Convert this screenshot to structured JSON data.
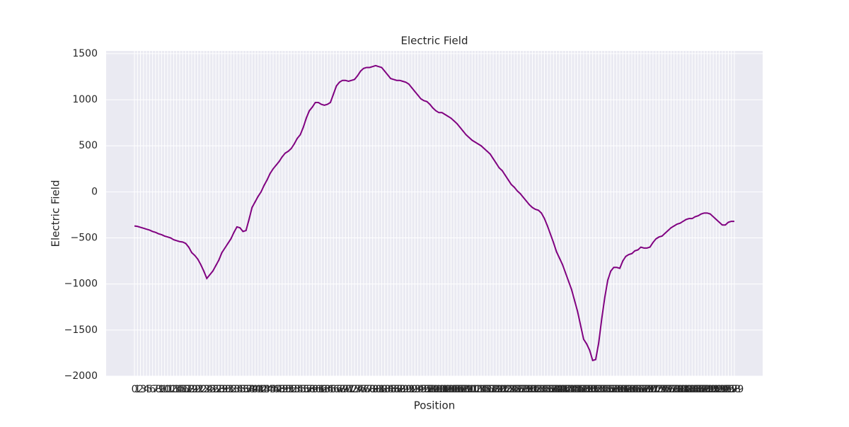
{
  "chart_data": {
    "type": "line",
    "title": "Electric Field",
    "x_label": "Position",
    "y_label": "Electric Field",
    "x": [
      0,
      1,
      2,
      3,
      4,
      5,
      6,
      7,
      8,
      9,
      10,
      11,
      12,
      13,
      14,
      15,
      16,
      17,
      18,
      19,
      20,
      21,
      22,
      23,
      24,
      25,
      26,
      27,
      28,
      29,
      30,
      31,
      32,
      33,
      34,
      35,
      36,
      37,
      38,
      39,
      40,
      41,
      42,
      43,
      44,
      45,
      46,
      47,
      48,
      49,
      50,
      51,
      52,
      53,
      54,
      55,
      56,
      57,
      58,
      59,
      60,
      61,
      62,
      63,
      64,
      65,
      66,
      67,
      68,
      69,
      70,
      71,
      72,
      73,
      74,
      75,
      76,
      77,
      78,
      79,
      80,
      81,
      82,
      83,
      84,
      85,
      86,
      87,
      88,
      89,
      90,
      91,
      92,
      93,
      94,
      95,
      96,
      97,
      98,
      99,
      100,
      101,
      102,
      103,
      104,
      105,
      106,
      107,
      108,
      109,
      110,
      111,
      112,
      113,
      114,
      115,
      116,
      117,
      118,
      119,
      120,
      121,
      122,
      123,
      124,
      125,
      126,
      127,
      128,
      129,
      130,
      131,
      132,
      133,
      134,
      135,
      136,
      137,
      138,
      139,
      140,
      141,
      142,
      143,
      144,
      145,
      146,
      147,
      148,
      149,
      150,
      151,
      152,
      153,
      154,
      155,
      156,
      157,
      158,
      159,
      160,
      161,
      162,
      163,
      164,
      165,
      166,
      167,
      168,
      169,
      170,
      171,
      172,
      173,
      174,
      175,
      176,
      177,
      178,
      179,
      180,
      181,
      182,
      183,
      184,
      185,
      186,
      187,
      188,
      189,
      190,
      191,
      192,
      193,
      194,
      195,
      196,
      197,
      198,
      199
    ],
    "series": [
      {
        "color": "#800080",
        "values": [
          -370,
          -375,
          -385,
          -395,
          -405,
          -415,
          -430,
          -440,
          -455,
          -465,
          -480,
          -490,
          -500,
          -520,
          -530,
          -540,
          -545,
          -560,
          -600,
          -660,
          -690,
          -730,
          -790,
          -860,
          -940,
          -900,
          -860,
          -800,
          -740,
          -660,
          -610,
          -560,
          -510,
          -440,
          -380,
          -390,
          -430,
          -420,
          -300,
          -170,
          -110,
          -50,
          0,
          70,
          130,
          200,
          250,
          290,
          330,
          380,
          420,
          440,
          470,
          520,
          580,
          620,
          700,
          800,
          880,
          920,
          970,
          970,
          950,
          940,
          950,
          970,
          1060,
          1150,
          1190,
          1210,
          1210,
          1200,
          1210,
          1220,
          1260,
          1310,
          1340,
          1350,
          1350,
          1360,
          1370,
          1360,
          1350,
          1310,
          1270,
          1230,
          1220,
          1210,
          1210,
          1200,
          1190,
          1170,
          1130,
          1090,
          1050,
          1010,
          990,
          980,
          950,
          910,
          880,
          860,
          860,
          840,
          820,
          800,
          770,
          740,
          700,
          660,
          620,
          590,
          560,
          540,
          520,
          500,
          470,
          440,
          410,
          360,
          310,
          260,
          230,
          180,
          130,
          80,
          50,
          10,
          -20,
          -60,
          -100,
          -140,
          -170,
          -190,
          -200,
          -230,
          -290,
          -370,
          -460,
          -550,
          -650,
          -720,
          -790,
          -880,
          -970,
          -1060,
          -1180,
          -1300,
          -1450,
          -1600,
          -1650,
          -1720,
          -1830,
          -1820,
          -1640,
          -1380,
          -1150,
          -960,
          -860,
          -820,
          -820,
          -830,
          -750,
          -700,
          -680,
          -670,
          -640,
          -630,
          -600,
          -610,
          -610,
          -600,
          -550,
          -510,
          -490,
          -480,
          -450,
          -420,
          -390,
          -370,
          -350,
          -340,
          -320,
          -300,
          -290,
          -290,
          -270,
          -260,
          -240,
          -230,
          -230,
          -240,
          -270,
          -300,
          -330,
          -360,
          -360,
          -330,
          -320,
          -320
        ]
      }
    ],
    "xlim": [
      -9.4,
      208.4
    ],
    "xticks": [
      0,
      1,
      2,
      3,
      4,
      5,
      6,
      7,
      8,
      9,
      10,
      11,
      12,
      13,
      14,
      15,
      16,
      17,
      18,
      19,
      20,
      21,
      22,
      23,
      24,
      25,
      26,
      27,
      28,
      29,
      30,
      31,
      32,
      33,
      34,
      35,
      36,
      37,
      38,
      39,
      40,
      41,
      42,
      43,
      44,
      45,
      46,
      47,
      48,
      49,
      50,
      51,
      52,
      53,
      54,
      55,
      56,
      57,
      58,
      59,
      60,
      61,
      62,
      63,
      64,
      65,
      66,
      67,
      68,
      69,
      70,
      71,
      72,
      73,
      74,
      75,
      76,
      77,
      78,
      79,
      80,
      81,
      82,
      83,
      84,
      85,
      86,
      87,
      88,
      89,
      90,
      91,
      92,
      93,
      94,
      95,
      96,
      97,
      98,
      99,
      100,
      101,
      102,
      103,
      104,
      105,
      106,
      107,
      108,
      109,
      110,
      111,
      112,
      113,
      114,
      115,
      116,
      117,
      118,
      119,
      120,
      121,
      122,
      123,
      124,
      125,
      126,
      127,
      128,
      129,
      130,
      131,
      132,
      133,
      134,
      135,
      136,
      137,
      138,
      139,
      140,
      141,
      142,
      143,
      144,
      145,
      146,
      147,
      148,
      149,
      150,
      151,
      152,
      153,
      154,
      155,
      156,
      157,
      158,
      159,
      160,
      161,
      162,
      163,
      164,
      165,
      166,
      167,
      168,
      169,
      170,
      171,
      172,
      173,
      174,
      175,
      176,
      177,
      178,
      179,
      180,
      181,
      182,
      183,
      184,
      185,
      186,
      187,
      188,
      189,
      190,
      191,
      192,
      193,
      194,
      195,
      196,
      197,
      198,
      199
    ],
    "ylim": [
      -2000,
      1530
    ],
    "yticks": [
      {
        "value": -2000,
        "label": "−2000"
      },
      {
        "value": -1500,
        "label": "−1500"
      },
      {
        "value": -1000,
        "label": "−1000"
      },
      {
        "value": -500,
        "label": "−500"
      },
      0,
      500,
      1000,
      1500
    ],
    "grid": true
  }
}
